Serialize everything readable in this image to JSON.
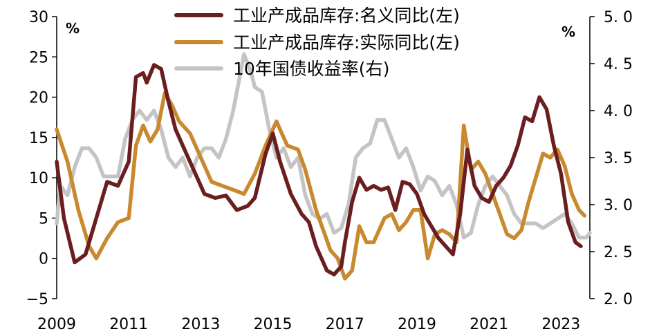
{
  "chart_data": {
    "type": "line",
    "left_axis": {
      "ticks": [
        30,
        25,
        20,
        15,
        10,
        5,
        0,
        -5
      ],
      "tick_labels": [
        "30",
        "25",
        "20",
        "15",
        "10",
        "5",
        "0",
        "−5"
      ],
      "ylim": [
        -5,
        30
      ],
      "unit": "%"
    },
    "right_axis": {
      "ticks": [
        5.0,
        4.5,
        4.0,
        3.5,
        3.0,
        2.5,
        2.0
      ],
      "tick_labels": [
        "5. 0",
        "4. 5",
        "4. 0",
        "3. 5",
        "3. 0",
        "2. 5",
        "2. 0"
      ],
      "ylim": [
        2.0,
        5.0
      ],
      "unit": "%"
    },
    "x_axis": {
      "ticks": [
        2009,
        2011,
        2013,
        2015,
        2017,
        2019,
        2021,
        2023
      ],
      "tick_labels": [
        "2009",
        "2011",
        "2013",
        "2015",
        "2017",
        "2019",
        "2021",
        "2023"
      ],
      "xlim": [
        2009.0,
        2023.8
      ]
    },
    "grid": false,
    "legend_position": "top",
    "series": [
      {
        "name": "工业产成品库存:名义同比(左)",
        "axis": "left",
        "color": "#6b1e20",
        "points": [
          [
            2009.0,
            12.0
          ],
          [
            2009.2,
            5.0
          ],
          [
            2009.5,
            -0.5
          ],
          [
            2009.8,
            0.5
          ],
          [
            2010.1,
            5.0
          ],
          [
            2010.4,
            9.5
          ],
          [
            2010.7,
            9.0
          ],
          [
            2011.0,
            12.0
          ],
          [
            2011.2,
            22.5
          ],
          [
            2011.4,
            23.0
          ],
          [
            2011.5,
            21.8
          ],
          [
            2011.7,
            24.0
          ],
          [
            2011.9,
            23.5
          ],
          [
            2012.1,
            19.5
          ],
          [
            2012.3,
            16.0
          ],
          [
            2012.6,
            13.0
          ],
          [
            2012.9,
            10.0
          ],
          [
            2013.1,
            8.0
          ],
          [
            2013.4,
            7.5
          ],
          [
            2013.7,
            7.8
          ],
          [
            2014.0,
            6.0
          ],
          [
            2014.3,
            6.5
          ],
          [
            2014.5,
            7.5
          ],
          [
            2014.8,
            13.0
          ],
          [
            2015.0,
            15.5
          ],
          [
            2015.2,
            12.0
          ],
          [
            2015.5,
            8.0
          ],
          [
            2015.8,
            5.5
          ],
          [
            2016.0,
            4.5
          ],
          [
            2016.2,
            1.5
          ],
          [
            2016.5,
            -1.5
          ],
          [
            2016.7,
            -2.0
          ],
          [
            2016.9,
            -1.0
          ],
          [
            2017.0,
            2.0
          ],
          [
            2017.2,
            7.0
          ],
          [
            2017.4,
            10.0
          ],
          [
            2017.6,
            8.5
          ],
          [
            2017.8,
            9.0
          ],
          [
            2018.0,
            8.5
          ],
          [
            2018.2,
            8.8
          ],
          [
            2018.4,
            6.0
          ],
          [
            2018.6,
            9.5
          ],
          [
            2018.8,
            9.2
          ],
          [
            2019.0,
            8.0
          ],
          [
            2019.2,
            5.5
          ],
          [
            2019.4,
            4.0
          ],
          [
            2019.6,
            2.5
          ],
          [
            2019.8,
            1.5
          ],
          [
            2020.0,
            0.5
          ],
          [
            2020.2,
            5.5
          ],
          [
            2020.4,
            13.5
          ],
          [
            2020.6,
            9.0
          ],
          [
            2020.8,
            7.5
          ],
          [
            2021.0,
            7.0
          ],
          [
            2021.2,
            9.0
          ],
          [
            2021.4,
            10.0
          ],
          [
            2021.6,
            11.5
          ],
          [
            2021.8,
            14.0
          ],
          [
            2022.0,
            17.5
          ],
          [
            2022.2,
            17.0
          ],
          [
            2022.4,
            20.0
          ],
          [
            2022.6,
            18.5
          ],
          [
            2022.8,
            14.0
          ],
          [
            2023.0,
            10.5
          ],
          [
            2023.2,
            4.5
          ],
          [
            2023.4,
            2.0
          ],
          [
            2023.55,
            1.5
          ]
        ]
      },
      {
        "name": "工业产成品库存:实际同比(左)",
        "axis": "left",
        "color": "#c8892f",
        "points": [
          [
            2009.0,
            16.0
          ],
          [
            2009.3,
            12.0
          ],
          [
            2009.6,
            6.0
          ],
          [
            2009.9,
            1.5
          ],
          [
            2010.1,
            0.0
          ],
          [
            2010.4,
            2.5
          ],
          [
            2010.7,
            4.5
          ],
          [
            2011.0,
            5.0
          ],
          [
            2011.2,
            14.0
          ],
          [
            2011.4,
            16.5
          ],
          [
            2011.6,
            14.5
          ],
          [
            2011.8,
            16.0
          ],
          [
            2012.0,
            20.5
          ],
          [
            2012.2,
            19.0
          ],
          [
            2012.4,
            17.0
          ],
          [
            2012.7,
            15.5
          ],
          [
            2013.0,
            12.5
          ],
          [
            2013.3,
            9.5
          ],
          [
            2013.6,
            9.0
          ],
          [
            2013.9,
            8.5
          ],
          [
            2014.2,
            8.0
          ],
          [
            2014.5,
            10.5
          ],
          [
            2014.8,
            14.0
          ],
          [
            2015.1,
            17.0
          ],
          [
            2015.4,
            14.0
          ],
          [
            2015.7,
            13.5
          ],
          [
            2015.9,
            11.0
          ],
          [
            2016.2,
            6.0
          ],
          [
            2016.4,
            3.5
          ],
          [
            2016.6,
            1.0
          ],
          [
            2016.8,
            0.0
          ],
          [
            2017.0,
            -2.5
          ],
          [
            2017.2,
            -1.5
          ],
          [
            2017.4,
            4.0
          ],
          [
            2017.6,
            2.0
          ],
          [
            2017.8,
            2.0
          ],
          [
            2018.1,
            5.0
          ],
          [
            2018.3,
            5.5
          ],
          [
            2018.5,
            3.5
          ],
          [
            2018.7,
            4.5
          ],
          [
            2018.9,
            6.0
          ],
          [
            2019.1,
            6.0
          ],
          [
            2019.3,
            0.0
          ],
          [
            2019.5,
            3.0
          ],
          [
            2019.7,
            3.5
          ],
          [
            2019.9,
            3.0
          ],
          [
            2020.1,
            2.0
          ],
          [
            2020.3,
            16.5
          ],
          [
            2020.5,
            11.0
          ],
          [
            2020.7,
            12.0
          ],
          [
            2020.9,
            10.5
          ],
          [
            2021.1,
            8.0
          ],
          [
            2021.3,
            5.5
          ],
          [
            2021.5,
            3.0
          ],
          [
            2021.7,
            2.5
          ],
          [
            2021.9,
            3.5
          ],
          [
            2022.1,
            7.0
          ],
          [
            2022.3,
            10.0
          ],
          [
            2022.5,
            13.0
          ],
          [
            2022.7,
            12.5
          ],
          [
            2022.9,
            13.5
          ],
          [
            2023.1,
            11.5
          ],
          [
            2023.3,
            8.0
          ],
          [
            2023.5,
            6.0
          ],
          [
            2023.65,
            5.3
          ]
        ]
      },
      {
        "name": "10年国债收益率(右)",
        "axis": "right",
        "color": "#c4c4c4",
        "points": [
          [
            2009.0,
            2.8
          ],
          [
            2009.1,
            3.2
          ],
          [
            2009.3,
            3.1
          ],
          [
            2009.5,
            3.4
          ],
          [
            2009.7,
            3.6
          ],
          [
            2009.9,
            3.6
          ],
          [
            2010.1,
            3.5
          ],
          [
            2010.3,
            3.3
          ],
          [
            2010.5,
            3.3
          ],
          [
            2010.7,
            3.3
          ],
          [
            2010.9,
            3.7
          ],
          [
            2011.1,
            3.9
          ],
          [
            2011.3,
            4.0
          ],
          [
            2011.5,
            3.9
          ],
          [
            2011.7,
            4.0
          ],
          [
            2011.9,
            3.8
          ],
          [
            2012.1,
            3.5
          ],
          [
            2012.3,
            3.4
          ],
          [
            2012.5,
            3.5
          ],
          [
            2012.7,
            3.3
          ],
          [
            2012.9,
            3.5
          ],
          [
            2013.1,
            3.6
          ],
          [
            2013.3,
            3.6
          ],
          [
            2013.5,
            3.5
          ],
          [
            2013.7,
            3.7
          ],
          [
            2013.9,
            4.0
          ],
          [
            2014.0,
            4.2
          ],
          [
            2014.2,
            4.6
          ],
          [
            2014.4,
            4.4
          ],
          [
            2014.5,
            4.25
          ],
          [
            2014.7,
            4.2
          ],
          [
            2014.9,
            3.8
          ],
          [
            2015.1,
            3.5
          ],
          [
            2015.3,
            3.6
          ],
          [
            2015.5,
            3.4
          ],
          [
            2015.7,
            3.5
          ],
          [
            2015.9,
            3.1
          ],
          [
            2016.1,
            2.9
          ],
          [
            2016.3,
            2.85
          ],
          [
            2016.5,
            2.9
          ],
          [
            2016.7,
            2.7
          ],
          [
            2016.9,
            2.75
          ],
          [
            2017.1,
            3.0
          ],
          [
            2017.3,
            3.5
          ],
          [
            2017.5,
            3.6
          ],
          [
            2017.7,
            3.65
          ],
          [
            2017.9,
            3.9
          ],
          [
            2018.1,
            3.9
          ],
          [
            2018.3,
            3.7
          ],
          [
            2018.5,
            3.5
          ],
          [
            2018.7,
            3.6
          ],
          [
            2018.9,
            3.4
          ],
          [
            2019.1,
            3.15
          ],
          [
            2019.3,
            3.3
          ],
          [
            2019.5,
            3.25
          ],
          [
            2019.7,
            3.1
          ],
          [
            2019.9,
            3.2
          ],
          [
            2020.1,
            3.0
          ],
          [
            2020.3,
            2.65
          ],
          [
            2020.5,
            2.7
          ],
          [
            2020.7,
            3.0
          ],
          [
            2020.9,
            3.2
          ],
          [
            2021.1,
            3.3
          ],
          [
            2021.3,
            3.2
          ],
          [
            2021.5,
            3.1
          ],
          [
            2021.7,
            2.9
          ],
          [
            2021.9,
            2.8
          ],
          [
            2022.1,
            2.8
          ],
          [
            2022.3,
            2.8
          ],
          [
            2022.5,
            2.75
          ],
          [
            2022.7,
            2.8
          ],
          [
            2022.9,
            2.85
          ],
          [
            2023.1,
            2.9
          ],
          [
            2023.3,
            2.8
          ],
          [
            2023.5,
            2.65
          ],
          [
            2023.7,
            2.65
          ],
          [
            2023.8,
            2.7
          ]
        ]
      }
    ]
  }
}
